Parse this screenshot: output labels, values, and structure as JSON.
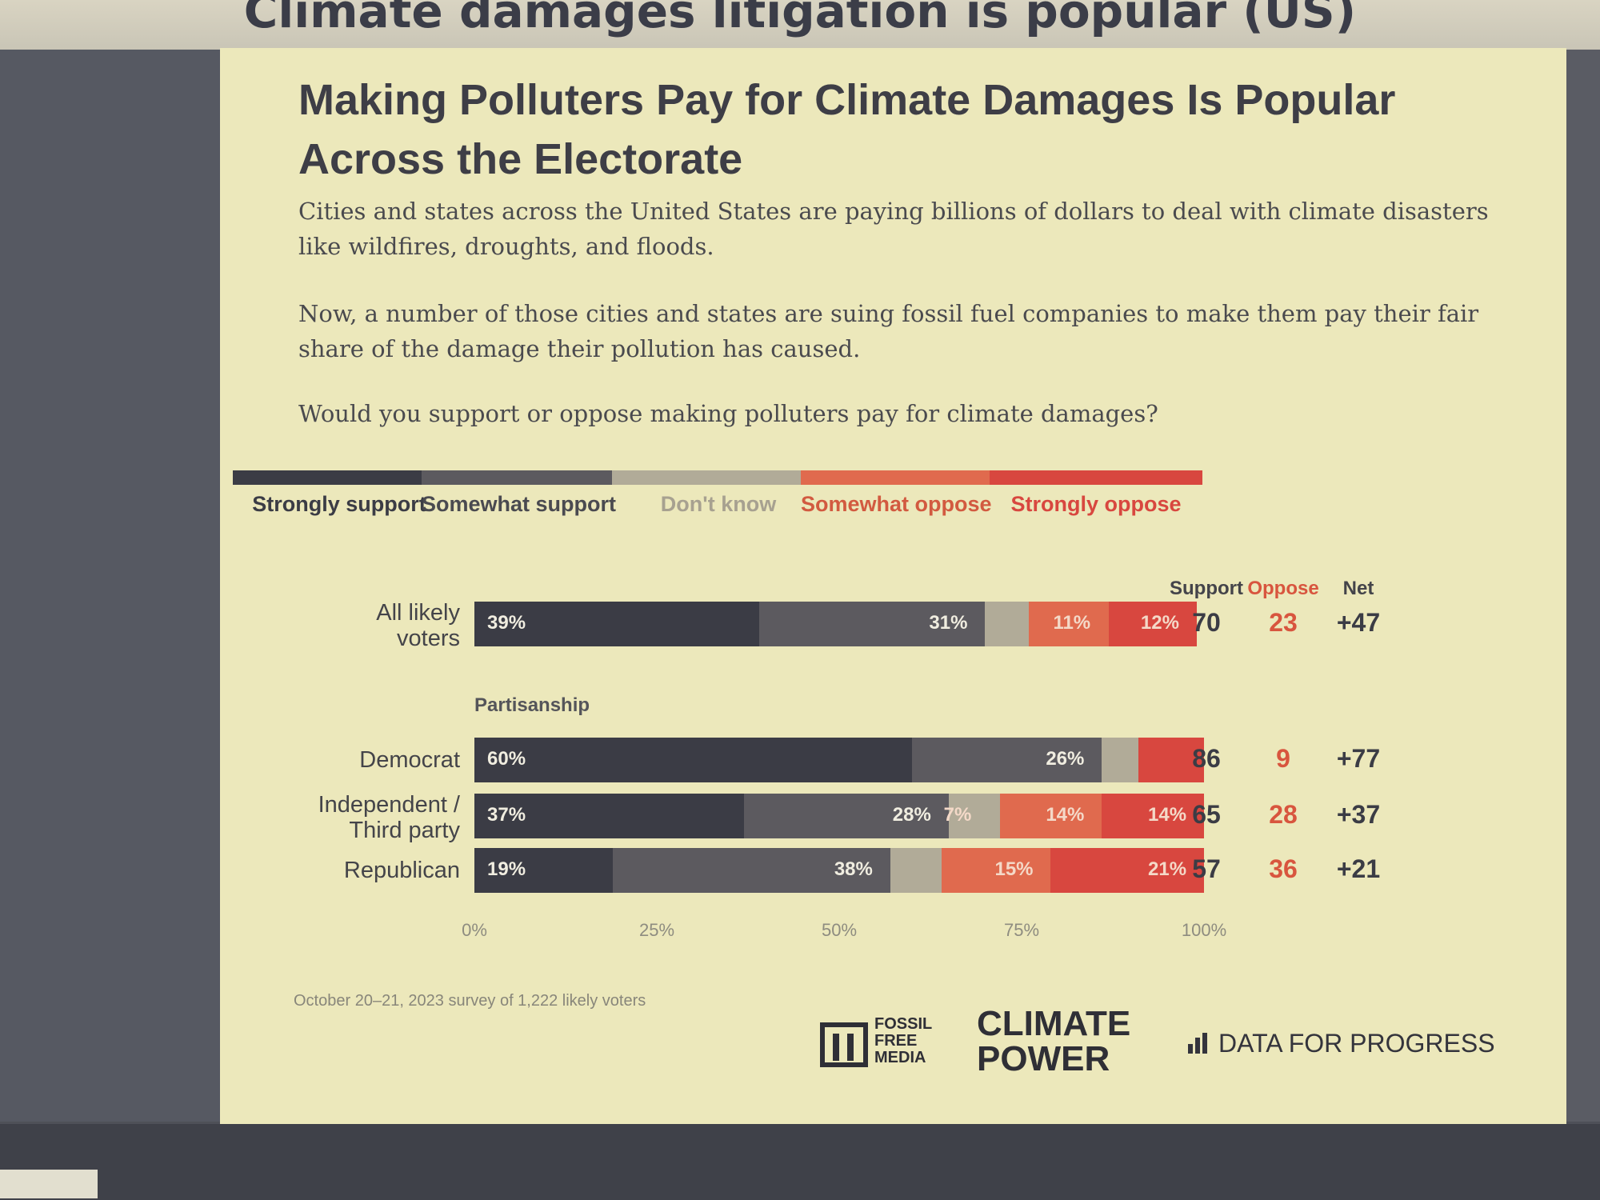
{
  "slide": {
    "title": "Climate damages litigation is popular (US)"
  },
  "panel": {
    "title": "Making Polluters Pay for Climate Damages Is Popular Across the Electorate",
    "paragraph1": "Cities and states across the United States are paying billions of dollars to deal with climate disasters like wildfires, droughts, and floods.",
    "paragraph2": "Now, a number of those cities and states are suing fossil fuel companies to make them pay their fair share of the damage their pollution has caused.",
    "question": "Would you support or oppose making polluters pay for climate damages?",
    "footnote": "October 20–21, 2023 survey of 1,222 likely voters"
  },
  "colors": {
    "strongly_support": "#3b3c45",
    "somewhat_support": "#5c5a5f",
    "dont_know": "#b1ab98",
    "somewhat_oppose": "#e06a4e",
    "strongly_oppose": "#d8473f"
  },
  "chart_data": {
    "type": "bar",
    "orientation": "horizontal",
    "stacked": true,
    "categories": [
      "Strongly support",
      "Somewhat support",
      "Don't know",
      "Somewhat oppose",
      "Strongly oppose"
    ],
    "section_label": "Partisanship",
    "column_headers": {
      "support": "Support",
      "oppose": "Oppose",
      "net": "Net"
    },
    "rows": [
      {
        "label": "All likely voters",
        "values": [
          39,
          31,
          6,
          11,
          12
        ],
        "labels": [
          "39%",
          "31%",
          "",
          "11%",
          "12%"
        ],
        "support": "70",
        "oppose": "23",
        "net": "+47"
      },
      {
        "label": "Democrat",
        "values": [
          60,
          26,
          5,
          0,
          9
        ],
        "labels": [
          "60%",
          "26%",
          "",
          "",
          ""
        ],
        "support": "86",
        "oppose": "9",
        "net": "+77"
      },
      {
        "label": "Independent / Third party",
        "values": [
          37,
          28,
          7,
          14,
          14
        ],
        "labels": [
          "37%",
          "28%",
          "7%",
          "14%",
          "14%"
        ],
        "support": "65",
        "oppose": "28",
        "net": "+37"
      },
      {
        "label": "Republican",
        "values": [
          19,
          38,
          7,
          15,
          21
        ],
        "labels": [
          "19%",
          "38%",
          "",
          "15%",
          "21%"
        ],
        "support": "57",
        "oppose": "36",
        "net": "+21"
      }
    ],
    "x_ticks": [
      "0%",
      "25%",
      "50%",
      "75%",
      "100%"
    ],
    "xlim": [
      0,
      100
    ],
    "grid": false,
    "legend_position": "top"
  },
  "logos": {
    "ffm": "FOSSIL FREE MEDIA",
    "climate_power": "CLIMATE POWER",
    "dfp": "DATA FOR PROGRESS"
  }
}
